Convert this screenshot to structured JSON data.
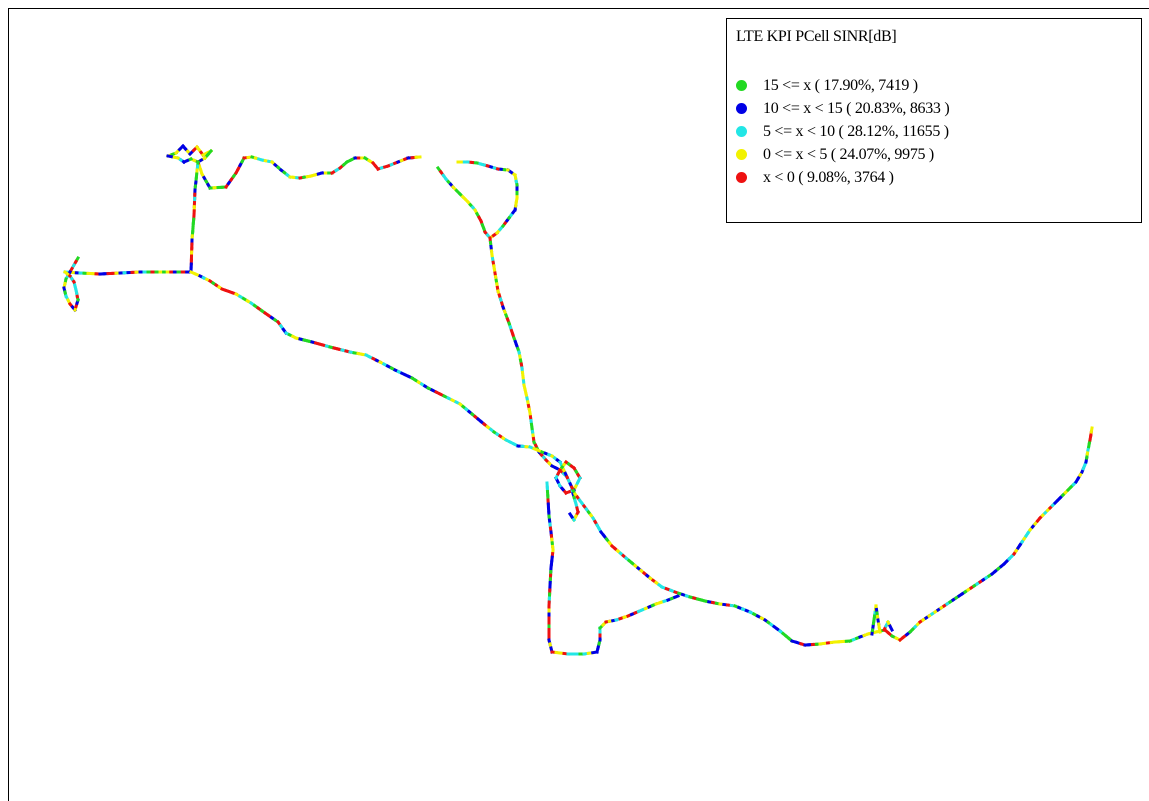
{
  "legend": {
    "title": "LTE KPI PCell SINR[dB]",
    "items": [
      {
        "label": "15 <= x ( 17.90%, 7419 )",
        "color": "#22d922"
      },
      {
        "label": "10 <= x < 15 ( 20.83%, 8633 )",
        "color": "#0000e6"
      },
      {
        "label": "5 <= x < 10 ( 28.12%, 11655 )",
        "color": "#22e6e6"
      },
      {
        "label": "0 <= x < 5 ( 24.07%, 9975 )",
        "color": "#f2f200"
      },
      {
        "label": "x < 0 ( 9.08%, 3764 )",
        "color": "#ee1111"
      }
    ]
  }
}
